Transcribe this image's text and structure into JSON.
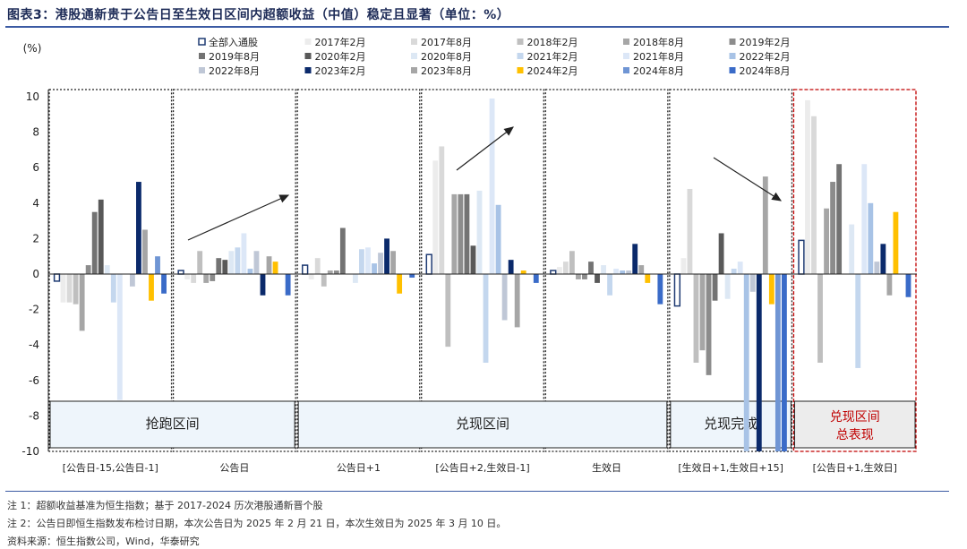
{
  "figure_title": "图表3：港股通新贵于公告日至生效日区间内超额收益（中值）稳定且显著（单位：%）",
  "notes": [
    "注 1：超额收益基准为恒生指数；基于 2017-2024 历次港股通新晋个股",
    "注 2：公告日即恒生指数发布检讨日期，本次公告日为 2025 年 2 月 21 日，本次生效日为 2025 年 3 月 10 日。",
    "资料来源：恒生指数公司，Wind，华泰研究"
  ],
  "chart_data": {
    "type": "bar",
    "title": "",
    "ylabel": "(%)",
    "xlabel": "",
    "ylim": [
      -10,
      10
    ],
    "yticks": [
      10,
      8,
      6,
      4,
      2,
      0,
      -2,
      -4,
      -6,
      -8,
      -10
    ],
    "grid": false,
    "legend_position": "top",
    "categories": [
      "[公告日-15,公告日-1]",
      "公告日",
      "公告日+1",
      "[公告日+2,生效日-1]",
      "生效日",
      "[生效日+1,生效日+15]",
      "[公告日+1,生效日]"
    ],
    "series": [
      {
        "name": "全部入通股",
        "color": "#ffffff",
        "stroke": "#1f3b73",
        "values": [
          -0.4,
          0.2,
          0.5,
          1.1,
          0.2,
          -1.8,
          1.9
        ]
      },
      {
        "name": "2017年2月",
        "color": "#ececec",
        "values": [
          -1.6,
          -0.3,
          -0.3,
          6.4,
          0.4,
          0.9,
          9.8
        ]
      },
      {
        "name": "2017年8月",
        "color": "#d9d9d9",
        "values": [
          -1.6,
          -0.5,
          0.9,
          7.2,
          0.7,
          4.8,
          8.9
        ]
      },
      {
        "name": "2018年2月",
        "color": "#bfbfbf",
        "values": [
          -1.7,
          1.3,
          -0.7,
          -4.1,
          1.3,
          -5.0,
          -5.0
        ]
      },
      {
        "name": "2018年8月",
        "color": "#a6a6a6",
        "values": [
          -3.2,
          -0.5,
          0.2,
          4.5,
          -0.3,
          -4.3,
          3.7
        ]
      },
      {
        "name": "2019年2月",
        "color": "#8c8c8c",
        "values": [
          0.5,
          -0.4,
          0.2,
          4.5,
          -0.3,
          -5.7,
          5.2
        ]
      },
      {
        "name": "2019年8月",
        "color": "#737373",
        "values": [
          3.5,
          0.9,
          2.6,
          4.5,
          0.7,
          -1.5,
          6.2
        ]
      },
      {
        "name": "2020年2月",
        "color": "#595959",
        "values": [
          4.2,
          0.8,
          0.0,
          1.6,
          -0.5,
          2.3,
          0.0
        ]
      },
      {
        "name": "2020年8月",
        "color": "#dde8f4",
        "values": [
          0.5,
          1.3,
          -0.5,
          4.7,
          0.5,
          -1.4,
          2.8
        ]
      },
      {
        "name": "2021年2月",
        "color": "#c4d7ee",
        "values": [
          -1.6,
          1.5,
          1.4,
          -5.0,
          -1.2,
          0.3,
          -5.3
        ]
      },
      {
        "name": "2021年8月",
        "color": "#dce7f7",
        "values": [
          -7.1,
          2.3,
          1.5,
          9.9,
          0.3,
          0.7,
          6.2
        ]
      },
      {
        "name": "2022年2月",
        "color": "#a8c3e6",
        "values": [
          0.0,
          0.3,
          0.6,
          3.9,
          0.2,
          -10.0,
          4.0
        ]
      },
      {
        "name": "2022年8月",
        "color": "#bfc7d6",
        "values": [
          -0.7,
          1.3,
          1.2,
          -2.6,
          0.2,
          -1.0,
          0.7
        ]
      },
      {
        "name": "2023年2月",
        "color": "#0b2a6b",
        "values": [
          5.2,
          -1.2,
          2.0,
          0.8,
          1.7,
          -10.0,
          1.7
        ]
      },
      {
        "name": "2023年8月",
        "color": "#a6a6a6",
        "values": [
          2.5,
          1.0,
          1.3,
          -3.0,
          0.5,
          5.5,
          -1.2
        ]
      },
      {
        "name": "2024年2月",
        "color": "#ffc000",
        "values": [
          -1.5,
          0.7,
          -1.1,
          0.2,
          -0.5,
          -1.7,
          3.5
        ]
      },
      {
        "name": "2024年8月",
        "color": "#6f95d4",
        "values": [
          1.0,
          0.0,
          0.0,
          0.0,
          0.0,
          -10.0,
          0.0
        ]
      },
      {
        "name": "2024年8月",
        "color": "#3a6bc8",
        "values": [
          -1.1,
          -1.2,
          -0.2,
          -0.5,
          -1.7,
          -10.0,
          -1.3
        ]
      }
    ],
    "regions": [
      {
        "label": "抢跑区间",
        "from": 0,
        "to": 1,
        "style": "band"
      },
      {
        "label": "兑现区间",
        "from": 2,
        "to": 4,
        "style": "band"
      },
      {
        "label": "兑现完成",
        "from": 5,
        "to": 5,
        "style": "band"
      },
      {
        "label_lines": [
          "兑现区间",
          "总表现"
        ],
        "from": 6,
        "to": 6,
        "style": "summary",
        "color": "#c00000"
      }
    ]
  }
}
